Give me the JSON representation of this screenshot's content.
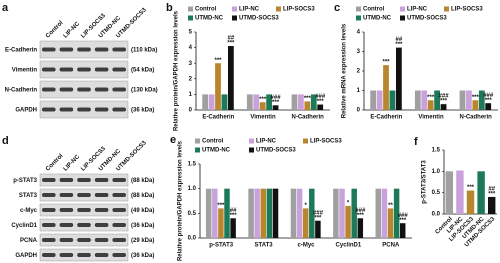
{
  "blots": [
    {
      "panel": "a",
      "lanes": [
        "Control",
        "LIP-NC",
        "LIP-SOCS3",
        "UTMD-NC",
        "UTMD-SOCS3"
      ],
      "rows": [
        {
          "label": "E-Cadherin",
          "size": "(110 kDa)"
        },
        {
          "label": "Vimentin",
          "size": "(54 kDa)"
        },
        {
          "label": "N-Cadherin",
          "size": "(130 kDa)"
        },
        {
          "label": "GAPDH",
          "size": "(36 kDa)"
        }
      ]
    },
    {
      "panel": "d",
      "lanes": [
        "Control",
        "LIP-NC",
        "LIP-SOCS3",
        "UTMD-NC",
        "UTMD-SOCS3"
      ],
      "rows": [
        {
          "label": "p-STAT3",
          "size": "(88 kDa)"
        },
        {
          "label": "STAT3",
          "size": "(88 kDa)"
        },
        {
          "label": "c-Myc",
          "size": "(49 kDa)"
        },
        {
          "label": "CyclinD1",
          "size": "(36 kDa)"
        },
        {
          "label": "PCNA",
          "size": "(29 kDa)"
        },
        {
          "label": "GAPDH",
          "size": "(36 kDa)"
        }
      ]
    }
  ],
  "chart_data": [
    {
      "type": "bar",
      "panel": "b",
      "y_label": "Relative protein/GAPDH expression levels",
      "categories": [
        "E-Cadherin",
        "Vimentin",
        "N-Cadherin"
      ],
      "ylim": [
        0,
        5
      ],
      "yticks": [
        0,
        1,
        2,
        3,
        4,
        5
      ],
      "series": [
        {
          "name": "Control",
          "color": "#a0a0a0",
          "values": [
            1,
            1,
            1
          ]
        },
        {
          "name": "LIP-NC",
          "color": "#c9a2dc",
          "values": [
            1,
            1,
            1
          ]
        },
        {
          "name": "LIP-SOCS3",
          "color": "#b8862e",
          "values": [
            3.0,
            0.5,
            0.55
          ],
          "annotations": [
            [
              "***"
            ],
            [
              "***"
            ],
            [
              "***"
            ]
          ]
        },
        {
          "name": "UTMD-NC",
          "color": "#1d7a58",
          "values": [
            1,
            1,
            1
          ]
        },
        {
          "name": "UTMD-SOCS3",
          "color": "#111111",
          "values": [
            4.1,
            0.3,
            0.35
          ],
          "annotations": [
            [
              "***",
              "##"
            ],
            [
              "***",
              "###"
            ],
            [
              "***",
              "###"
            ]
          ]
        }
      ]
    },
    {
      "type": "bar",
      "panel": "c",
      "y_label": "Relative mRNA expression levels",
      "categories": [
        "E-Cadherin",
        "Vimentin",
        "N-Cadherin"
      ],
      "ylim": [
        0,
        4
      ],
      "yticks": [
        0,
        1,
        2,
        3,
        4
      ],
      "series": [
        {
          "name": "Control",
          "color": "#a0a0a0",
          "values": [
            1,
            1,
            1
          ]
        },
        {
          "name": "LIP-NC",
          "color": "#c9a2dc",
          "values": [
            1,
            1,
            1
          ]
        },
        {
          "name": "LIP-SOCS3",
          "color": "#b8862e",
          "values": [
            2.3,
            0.5,
            0.5
          ],
          "annotations": [
            [
              "***"
            ],
            [
              "***"
            ],
            [
              "***"
            ]
          ]
        },
        {
          "name": "UTMD-NC",
          "color": "#1d7a58",
          "values": [
            1,
            1,
            1
          ]
        },
        {
          "name": "UTMD-SOCS3",
          "color": "#111111",
          "values": [
            3.2,
            0.3,
            0.35
          ],
          "annotations": [
            [
              "***",
              "##"
            ],
            [
              "***",
              "###"
            ],
            [
              "***",
              "###"
            ]
          ]
        }
      ]
    },
    {
      "type": "bar",
      "panel": "e",
      "y_label": "Relative protein/GAPDH expression levels",
      "categories": [
        "p-STAT3",
        "STAT3",
        "c-Myc",
        "CyclinD1",
        "PCNA"
      ],
      "ylim": [
        0,
        1.5
      ],
      "yticks": [
        {
          "value": 0,
          "label": "0.0"
        },
        {
          "value": 0.5,
          "label": "0.5"
        },
        {
          "value": 1,
          "label": "1.0"
        },
        {
          "value": 1.5,
          "label": "1.5"
        }
      ],
      "series": [
        {
          "name": "Control",
          "color": "#a0a0a0",
          "values": [
            1,
            1,
            1,
            1,
            1
          ]
        },
        {
          "name": "LIP-NC",
          "color": "#c9a2dc",
          "values": [
            1,
            1,
            1,
            1,
            1
          ]
        },
        {
          "name": "LIP-SOCS3",
          "color": "#b8862e",
          "values": [
            0.6,
            1,
            0.6,
            0.65,
            0.6
          ],
          "annotations": [
            [
              "***"
            ],
            null,
            [
              "*"
            ],
            [
              "*"
            ],
            [
              "**"
            ]
          ]
        },
        {
          "name": "UTMD-NC",
          "color": "#1d7a58",
          "values": [
            1,
            1,
            1,
            1,
            1
          ]
        },
        {
          "name": "UTMD-SOCS3",
          "color": "#111111",
          "values": [
            0.4,
            1,
            0.35,
            0.4,
            0.3
          ],
          "annotations": [
            [
              "***",
              "##"
            ],
            null,
            [
              "***",
              "###"
            ],
            [
              "***",
              "###"
            ],
            [
              "***",
              "###"
            ]
          ]
        }
      ]
    },
    {
      "type": "bar",
      "panel": "f",
      "y_label": "p-STAT3/STAT3",
      "categories": [
        "Control",
        "LIP-NC",
        "LIP-SOCS3",
        "UTMD-NC",
        "UTMD-SOCS3"
      ],
      "ylim": [
        0,
        1.5
      ],
      "yticks": [
        {
          "value": 0,
          "label": "0.0"
        },
        {
          "value": 0.5,
          "label": "0.5"
        },
        {
          "value": 1,
          "label": "1.0"
        },
        {
          "value": 1.5,
          "label": "1.5"
        }
      ],
      "values": [
        1,
        1.02,
        0.55,
        1,
        0.4
      ],
      "colors": [
        "#a0a0a0",
        "#c9a2dc",
        "#b8862e",
        "#1d7a58",
        "#111111"
      ],
      "annotations": [
        null,
        null,
        [
          "***"
        ],
        null,
        [
          "***",
          "##"
        ]
      ]
    }
  ]
}
